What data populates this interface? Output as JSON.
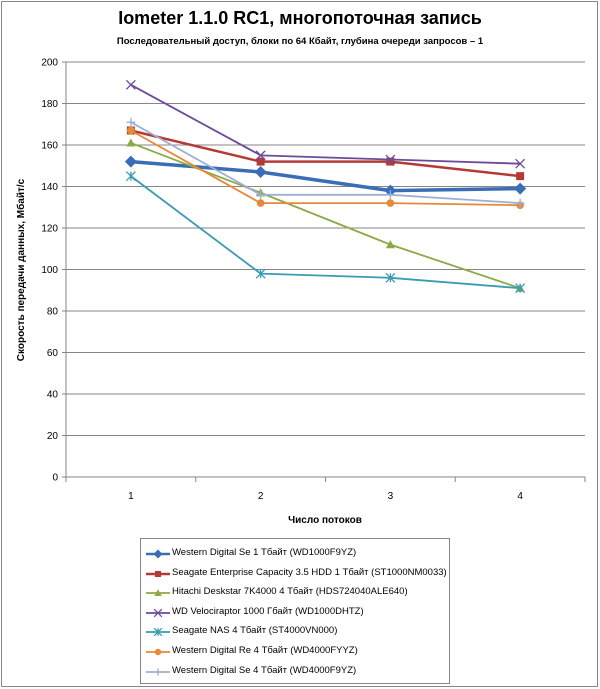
{
  "chart_data": {
    "type": "line",
    "title": "Iometer 1.1.0 RC1, многопоточная запись",
    "subtitle": "Последовательный  доступ, блоки по 64 Кбайт,  глубина очереди запросов – 1",
    "xlabel": "Число потоков",
    "ylabel": "Скорость передачи данных, Мбайт/с",
    "categories": [
      "1",
      "2",
      "3",
      "4"
    ],
    "ylim": [
      0,
      200
    ],
    "yticks": [
      0,
      20,
      40,
      60,
      80,
      100,
      120,
      140,
      160,
      180,
      200
    ],
    "grid": "horizontal",
    "legend_position": "bottom",
    "series": [
      {
        "name": "Western Digital Se 1 Тбайт (WD1000F9YZ)",
        "values": [
          152,
          147,
          138,
          139
        ],
        "color": "#3A6DB5",
        "marker": "diamond",
        "width": 3.5
      },
      {
        "name": "Seagate Enterprise Capacity 3.5 HDD 1 Тбайт (ST1000NM0033)",
        "values": [
          167,
          152,
          152,
          145
        ],
        "color": "#B43A37",
        "marker": "square",
        "width": 2.5
      },
      {
        "name": "Hitachi Deskstar 7K4000 4 Тбайт (HDS724040ALE640)",
        "values": [
          161,
          137,
          112,
          91
        ],
        "color": "#8BAA43",
        "marker": "triangle",
        "width": 1.8
      },
      {
        "name": "WD Velociraptor 1000 Гбайт (WD1000DHTZ)",
        "values": [
          189,
          155,
          153,
          151
        ],
        "color": "#6C4A99",
        "marker": "x",
        "width": 1.8
      },
      {
        "name": "Seagate NAS 4 Тбайт (ST4000VN000)",
        "values": [
          145,
          98,
          96,
          91
        ],
        "color": "#3A9BB5",
        "marker": "star",
        "width": 1.8
      },
      {
        "name": "Western Digital Re 4 Тбайт (WD4000FYYZ)",
        "values": [
          167,
          132,
          132,
          131
        ],
        "color": "#E8883A",
        "marker": "circle",
        "width": 1.8
      },
      {
        "name": "Western Digital Se 4 Тбайт (WD4000F9YZ)",
        "values": [
          171,
          136,
          136,
          132
        ],
        "color": "#9EAED5",
        "marker": "plus",
        "width": 1.8
      }
    ]
  }
}
